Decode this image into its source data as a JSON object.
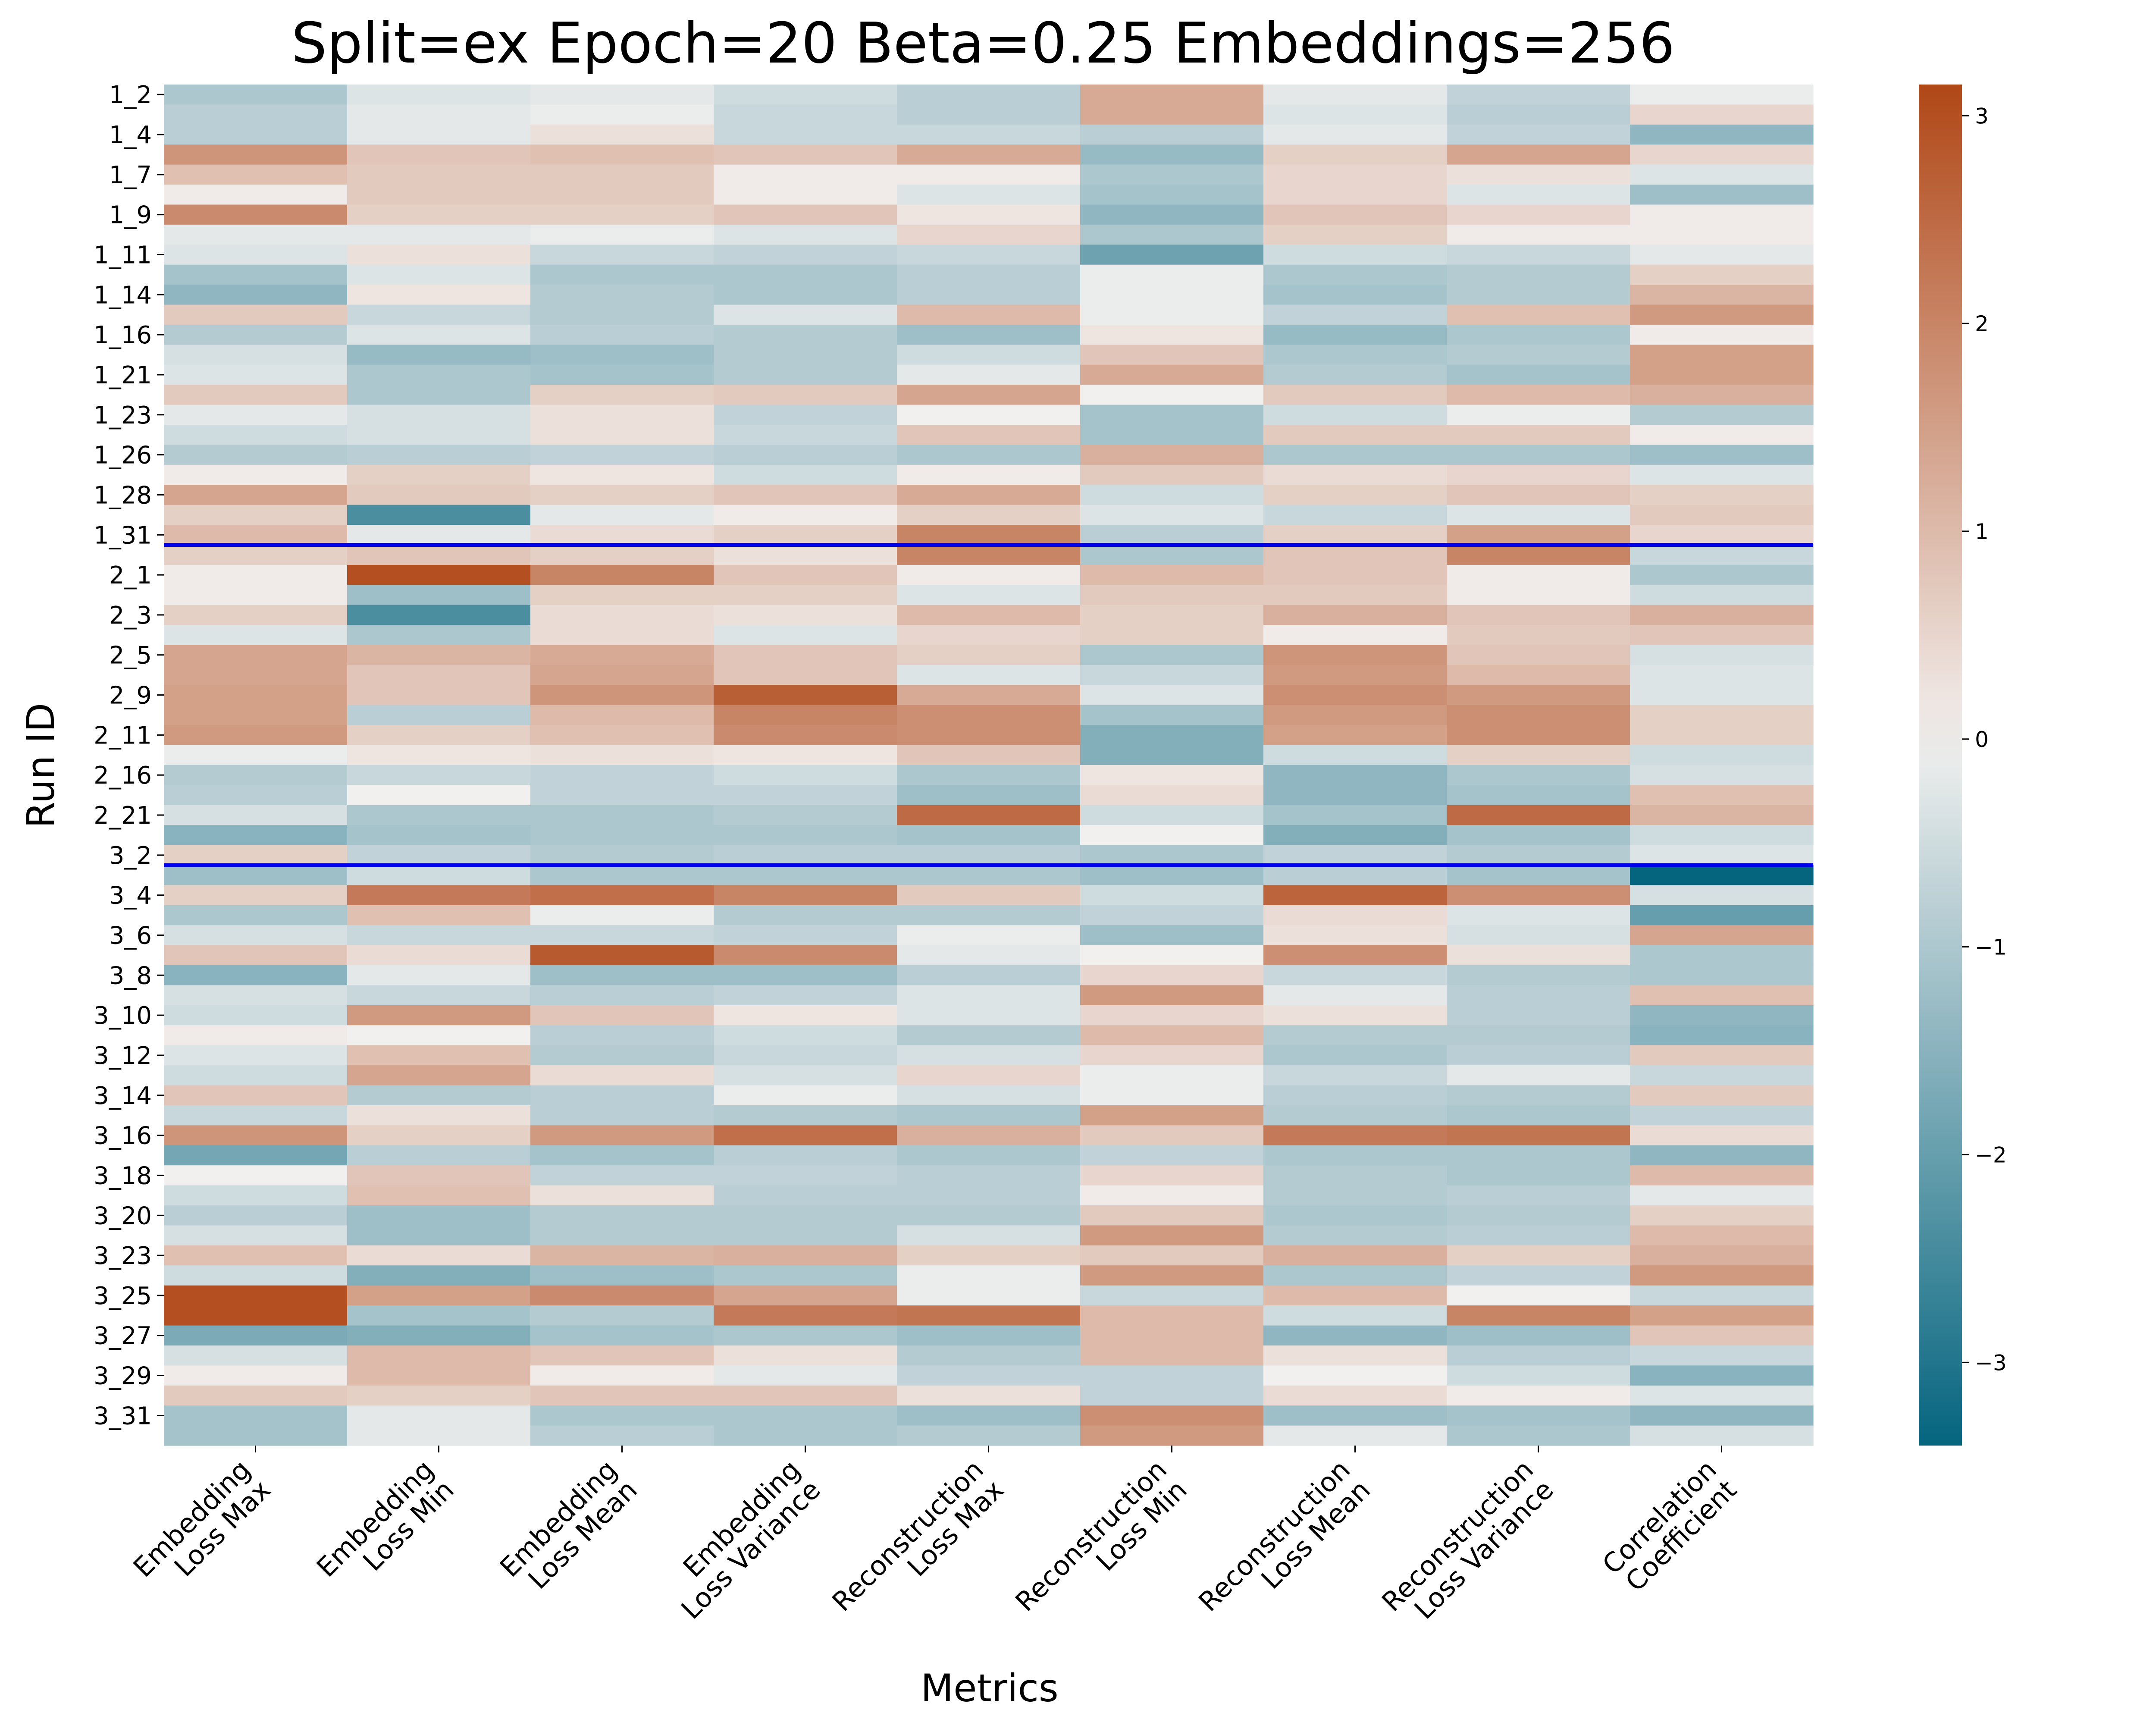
{
  "chart_data": {
    "type": "heatmap",
    "title": "Split=ex Epoch=20 Beta=0.25 Embeddings=256",
    "xlabel": "Metrics",
    "ylabel": "Run ID",
    "columns": [
      [
        "Embedding",
        "Loss Max"
      ],
      [
        "Embedding",
        "Loss Min"
      ],
      [
        "Embedding",
        "Loss Mean"
      ],
      [
        "Embedding",
        "Loss Variance"
      ],
      [
        "Reconstruction",
        "Loss Max"
      ],
      [
        "Reconstruction",
        "Loss Min"
      ],
      [
        "Reconstruction",
        "Loss Mean"
      ],
      [
        "Reconstruction",
        "Loss Variance"
      ],
      [
        "Correlation",
        "Coefficient"
      ]
    ],
    "row_tick_labels": [
      "1_2",
      "1_4",
      "1_7",
      "1_9",
      "1_11",
      "1_14",
      "1_16",
      "1_21",
      "1_23",
      "1_26",
      "1_28",
      "1_31",
      "2_1",
      "2_3",
      "2_5",
      "2_9",
      "2_11",
      "2_16",
      "2_21",
      "3_2",
      "3_4",
      "3_6",
      "3_8",
      "3_10",
      "3_12",
      "3_14",
      "3_16",
      "3_18",
      "3_20",
      "3_23",
      "3_25",
      "3_27",
      "3_29",
      "3_31"
    ],
    "row_count": 68,
    "group_separators_after_row": [
      23,
      39
    ],
    "separator_color": "#0000ee",
    "colorbar": {
      "range": [
        -3.4,
        3.15
      ],
      "ticks": [
        "3",
        "2",
        "1",
        "0",
        "−1",
        "−2",
        "−3"
      ],
      "tick_values": [
        3,
        2,
        1,
        0,
        -1,
        -2,
        -3
      ],
      "colors": {
        "low": "#05657f",
        "mid": "#f2f0ef",
        "high": "#b04717"
      }
    },
    "values": [
      [
        -1.0,
        -0.3,
        -0.2,
        -0.5,
        -0.8,
        1.3,
        -0.2,
        -0.7,
        -0.1
      ],
      [
        -0.8,
        -0.2,
        -0.1,
        -0.6,
        -0.8,
        1.3,
        -0.3,
        -0.8,
        0.5
      ],
      [
        -0.8,
        -0.2,
        0.3,
        -0.6,
        -0.6,
        -0.8,
        -0.2,
        -0.7,
        -1.4
      ],
      [
        1.7,
        0.8,
        0.9,
        0.8,
        1.3,
        -1.3,
        0.6,
        1.4,
        0.5
      ],
      [
        0.9,
        0.7,
        0.7,
        0.1,
        0.1,
        -1.0,
        0.5,
        0.3,
        -0.3
      ],
      [
        0.1,
        0.7,
        0.7,
        0.1,
        -0.3,
        -1.1,
        0.5,
        -0.3,
        -1.2
      ],
      [
        1.9,
        0.6,
        0.6,
        0.8,
        0.2,
        -1.4,
        0.8,
        0.5,
        0.1
      ],
      [
        -0.2,
        -0.2,
        -0.1,
        -0.3,
        0.5,
        -1.0,
        0.6,
        0.1,
        0.1
      ],
      [
        -0.3,
        0.3,
        -0.6,
        -0.7,
        -0.6,
        -1.9,
        -0.5,
        -0.6,
        -0.2
      ],
      [
        -1.1,
        -0.3,
        -1.0,
        -1.0,
        -0.8,
        -0.1,
        -1.0,
        -0.9,
        0.6
      ],
      [
        -1.4,
        0.2,
        -0.9,
        -1.0,
        -0.8,
        -0.1,
        -1.1,
        -0.9,
        1.1
      ],
      [
        0.7,
        -0.6,
        -0.9,
        -0.3,
        1.0,
        -0.1,
        -0.7,
        0.9,
        1.6
      ],
      [
        -0.9,
        -0.3,
        -0.8,
        -0.9,
        -1.2,
        0.2,
        -1.3,
        -1.0,
        0.1
      ],
      [
        -0.4,
        -1.3,
        -1.2,
        -0.9,
        -0.5,
        0.8,
        -1.0,
        -0.9,
        1.5
      ],
      [
        -0.3,
        -1.0,
        -1.1,
        -0.9,
        -0.2,
        1.3,
        -0.9,
        -1.1,
        1.5
      ],
      [
        0.7,
        -1.0,
        0.6,
        0.7,
        1.4,
        0.0,
        0.7,
        1.0,
        1.2
      ],
      [
        -0.2,
        -0.4,
        0.3,
        -0.7,
        0.0,
        -1.1,
        -0.5,
        -0.1,
        -0.9
      ],
      [
        -0.5,
        -0.4,
        0.3,
        -0.6,
        0.8,
        -1.1,
        0.7,
        0.7,
        0.1
      ],
      [
        -0.9,
        -0.8,
        -0.7,
        -0.8,
        -1.0,
        1.2,
        -1.0,
        -1.0,
        -1.2
      ],
      [
        0.1,
        0.6,
        0.2,
        -0.5,
        0.1,
        0.7,
        0.4,
        0.5,
        -0.3
      ],
      [
        1.4,
        0.7,
        0.6,
        0.8,
        1.3,
        -0.5,
        0.6,
        0.8,
        0.6
      ],
      [
        0.6,
        -2.4,
        -0.2,
        0.1,
        0.6,
        -0.3,
        -0.6,
        -0.3,
        0.7
      ],
      [
        1.0,
        -0.2,
        0.4,
        0.6,
        2.0,
        -0.8,
        0.6,
        1.5,
        0.5
      ],
      [
        0.6,
        0.8,
        0.6,
        0.3,
        2.0,
        -1.0,
        0.8,
        2.0,
        -0.6
      ],
      [
        0.1,
        3.0,
        2.0,
        0.8,
        0.1,
        1.0,
        0.8,
        0.1,
        -1.0
      ],
      [
        0.1,
        -1.2,
        0.6,
        0.6,
        -0.3,
        0.7,
        0.7,
        0.1,
        -0.5
      ],
      [
        0.6,
        -2.4,
        0.4,
        0.3,
        1.0,
        0.6,
        1.2,
        0.8,
        1.2
      ],
      [
        -0.3,
        -1.0,
        0.4,
        -0.3,
        0.5,
        0.6,
        0.1,
        0.7,
        0.8
      ],
      [
        1.4,
        1.1,
        1.3,
        0.8,
        0.6,
        -1.0,
        1.7,
        0.8,
        -0.4
      ],
      [
        1.4,
        0.8,
        1.4,
        0.8,
        -0.3,
        -0.6,
        1.6,
        1.0,
        -0.3
      ],
      [
        1.5,
        0.8,
        1.7,
        2.7,
        1.3,
        -0.3,
        1.8,
        1.6,
        -0.3
      ],
      [
        1.5,
        -0.8,
        1.0,
        2.0,
        1.8,
        -1.1,
        1.6,
        1.8,
        0.6
      ],
      [
        1.6,
        0.6,
        0.9,
        1.9,
        1.8,
        -1.6,
        1.5,
        1.8,
        0.6
      ],
      [
        -0.1,
        0.2,
        0.3,
        0.2,
        0.8,
        -1.6,
        -0.5,
        0.6,
        -0.5
      ],
      [
        -0.9,
        -0.6,
        -0.7,
        -0.5,
        -1.0,
        0.2,
        -1.4,
        -1.0,
        -0.4
      ],
      [
        -0.8,
        0.0,
        -0.7,
        -0.7,
        -1.2,
        0.4,
        -1.4,
        -1.1,
        0.9
      ],
      [
        -0.4,
        -1.0,
        -1.0,
        -0.9,
        2.5,
        -0.5,
        -1.1,
        2.5,
        1.1
      ],
      [
        -1.5,
        -1.1,
        -1.0,
        -1.0,
        -1.1,
        0.0,
        -1.6,
        -1.1,
        -0.5
      ],
      [
        0.6,
        -0.7,
        -0.9,
        -0.8,
        -0.8,
        -1.0,
        -0.7,
        -0.9,
        -0.3
      ],
      [
        -1.2,
        -0.5,
        -1.0,
        -1.0,
        -1.0,
        -1.2,
        -0.8,
        -1.1,
        -3.4
      ],
      [
        0.6,
        2.2,
        2.4,
        2.0,
        0.7,
        -0.5,
        2.6,
        1.8,
        -0.4
      ],
      [
        -1.0,
        0.9,
        -0.1,
        -0.9,
        -0.9,
        -0.7,
        0.4,
        -0.3,
        -2.0
      ],
      [
        -0.4,
        -0.6,
        -0.6,
        -0.7,
        -0.1,
        -1.2,
        0.3,
        -0.4,
        1.4
      ],
      [
        0.8,
        0.4,
        2.8,
        1.9,
        -0.2,
        0.0,
        1.8,
        0.3,
        -1.0
      ],
      [
        -1.5,
        -0.2,
        -1.2,
        -1.2,
        -0.8,
        0.5,
        -0.6,
        -0.9,
        -1.0
      ],
      [
        -0.4,
        -0.6,
        -0.8,
        -0.7,
        -0.3,
        1.6,
        -0.2,
        -0.8,
        0.9
      ],
      [
        -0.5,
        1.6,
        0.8,
        0.2,
        -0.3,
        0.5,
        0.3,
        -0.8,
        -1.4
      ],
      [
        0.1,
        0.0,
        -0.8,
        -0.5,
        -0.9,
        1.0,
        -0.9,
        -0.9,
        -1.5
      ],
      [
        -0.3,
        0.9,
        -0.9,
        -0.6,
        -0.4,
        0.5,
        -1.0,
        -0.8,
        0.7
      ],
      [
        -0.5,
        1.4,
        0.4,
        -0.4,
        0.5,
        -0.1,
        -0.6,
        -0.2,
        -0.6
      ],
      [
        0.8,
        -0.9,
        -0.8,
        -0.1,
        -0.4,
        -0.1,
        -0.8,
        -0.9,
        0.7
      ],
      [
        -0.6,
        0.3,
        -0.8,
        -0.9,
        -1.0,
        1.5,
        -0.9,
        -1.0,
        -0.7
      ],
      [
        1.7,
        0.6,
        1.6,
        2.4,
        1.2,
        0.7,
        2.2,
        2.3,
        0.4
      ],
      [
        -1.8,
        -0.8,
        -1.1,
        -0.8,
        -1.0,
        -0.7,
        -1.0,
        -1.0,
        -1.4
      ],
      [
        0.0,
        0.8,
        -0.7,
        -0.7,
        -0.8,
        0.5,
        -0.9,
        -1.0,
        1.0
      ],
      [
        -0.5,
        0.9,
        0.3,
        -0.8,
        -0.8,
        0.1,
        -0.9,
        -0.8,
        -0.2
      ],
      [
        -0.8,
        -1.2,
        -0.9,
        -0.9,
        -0.9,
        0.7,
        -1.0,
        -0.9,
        0.6
      ],
      [
        -0.4,
        -1.2,
        -0.9,
        -0.9,
        -0.4,
        1.6,
        -0.9,
        -0.8,
        1.0
      ],
      [
        0.9,
        0.4,
        1.1,
        1.2,
        0.6,
        0.7,
        1.2,
        0.6,
        1.2
      ],
      [
        -0.5,
        -1.6,
        -1.2,
        -1.0,
        -0.1,
        1.6,
        -1.0,
        -0.7,
        1.6
      ],
      [
        3.0,
        1.5,
        1.9,
        1.4,
        -0.1,
        -0.6,
        1.0,
        0.0,
        -0.6
      ],
      [
        3.0,
        -1.1,
        -0.9,
        2.2,
        2.3,
        1.0,
        -0.5,
        2.0,
        1.5
      ],
      [
        -1.7,
        -1.6,
        -1.1,
        -1.0,
        -1.2,
        1.0,
        -1.4,
        -1.2,
        0.8
      ],
      [
        -0.4,
        1.0,
        0.8,
        0.3,
        -0.9,
        1.0,
        0.3,
        -0.8,
        -0.6
      ],
      [
        0.1,
        1.0,
        0.1,
        -0.2,
        -0.7,
        -0.7,
        0.0,
        -0.5,
        -1.5
      ],
      [
        0.7,
        0.6,
        0.8,
        0.8,
        0.3,
        -0.7,
        0.4,
        0.1,
        -0.3
      ],
      [
        -1.1,
        -0.2,
        -1.0,
        -1.0,
        -1.2,
        1.8,
        -1.2,
        -1.1,
        -1.4
      ],
      [
        -1.1,
        -0.2,
        -0.8,
        -1.0,
        -0.9,
        1.6,
        -0.2,
        -1.0,
        -0.4
      ]
    ]
  }
}
